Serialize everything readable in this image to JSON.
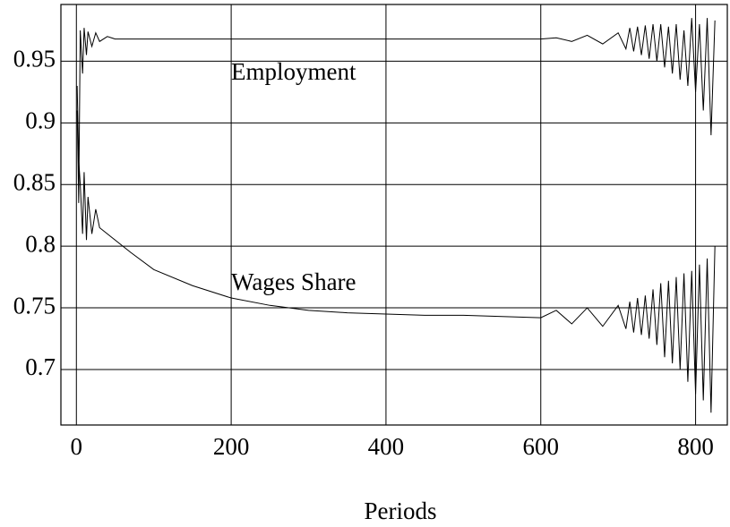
{
  "chart_data": {
    "type": "line",
    "xlabel": "Periods",
    "x": [
      1,
      3,
      5,
      8,
      10,
      13,
      15,
      20,
      25,
      30,
      40,
      50,
      70,
      100,
      150,
      200,
      250,
      300,
      350,
      400,
      450,
      500,
      550,
      600,
      620,
      640,
      660,
      680,
      700,
      710,
      715,
      720,
      725,
      730,
      735,
      740,
      745,
      750,
      755,
      760,
      765,
      770,
      775,
      780,
      785,
      790,
      795,
      800,
      805,
      810,
      815,
      820,
      825
    ],
    "series": [
      {
        "name": "Employment",
        "color": "#000000",
        "values": [
          0.91,
          0.835,
          0.975,
          0.94,
          0.977,
          0.955,
          0.974,
          0.962,
          0.973,
          0.966,
          0.97,
          0.968,
          0.968,
          0.968,
          0.968,
          0.968,
          0.968,
          0.968,
          0.968,
          0.968,
          0.968,
          0.968,
          0.968,
          0.968,
          0.969,
          0.966,
          0.971,
          0.964,
          0.973,
          0.96,
          0.977,
          0.958,
          0.978,
          0.955,
          0.979,
          0.952,
          0.98,
          0.95,
          0.98,
          0.945,
          0.978,
          0.94,
          0.98,
          0.935,
          0.975,
          0.93,
          0.985,
          0.925,
          0.98,
          0.91,
          0.985,
          0.89,
          0.983
        ]
      },
      {
        "name": "Wages Share",
        "color": "#000000",
        "values": [
          0.93,
          0.87,
          0.85,
          0.81,
          0.86,
          0.805,
          0.84,
          0.81,
          0.83,
          0.815,
          0.81,
          0.805,
          0.795,
          0.781,
          0.768,
          0.758,
          0.752,
          0.748,
          0.746,
          0.745,
          0.744,
          0.744,
          0.743,
          0.742,
          0.748,
          0.737,
          0.75,
          0.735,
          0.752,
          0.733,
          0.755,
          0.73,
          0.758,
          0.728,
          0.76,
          0.725,
          0.765,
          0.72,
          0.77,
          0.71,
          0.772,
          0.705,
          0.775,
          0.7,
          0.778,
          0.69,
          0.78,
          0.68,
          0.785,
          0.675,
          0.79,
          0.665,
          0.8
        ]
      }
    ],
    "xlim": [
      -20,
      841
    ],
    "ylim": [
      0.655,
      0.996
    ],
    "xticks": [
      0,
      200,
      400,
      600,
      800
    ],
    "yticks": [
      0.7,
      0.75,
      0.8,
      0.85,
      0.9,
      0.95
    ],
    "grid": true
  }
}
